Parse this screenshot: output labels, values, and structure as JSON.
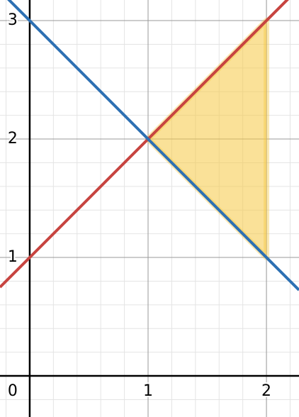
{
  "chart_data": {
    "type": "line",
    "xlim": [
      -0.251,
      2.275
    ],
    "ylim": [
      -0.347,
      3.174
    ],
    "xticks": [
      0,
      1,
      2
    ],
    "yticks": [
      1,
      2,
      3
    ],
    "grid": true,
    "series": [
      {
        "color": "#c74440",
        "x": [
          -0.251,
          2.275
        ],
        "values": [
          0.749,
          3.275
        ]
      },
      {
        "color": "#2d70b3",
        "x": [
          -0.251,
          2.275
        ],
        "values": [
          3.251,
          0.725
        ]
      }
    ],
    "region": {
      "color": "#f6c944",
      "x": [
        1,
        2,
        2
      ],
      "values": [
        2,
        3,
        1
      ]
    }
  }
}
